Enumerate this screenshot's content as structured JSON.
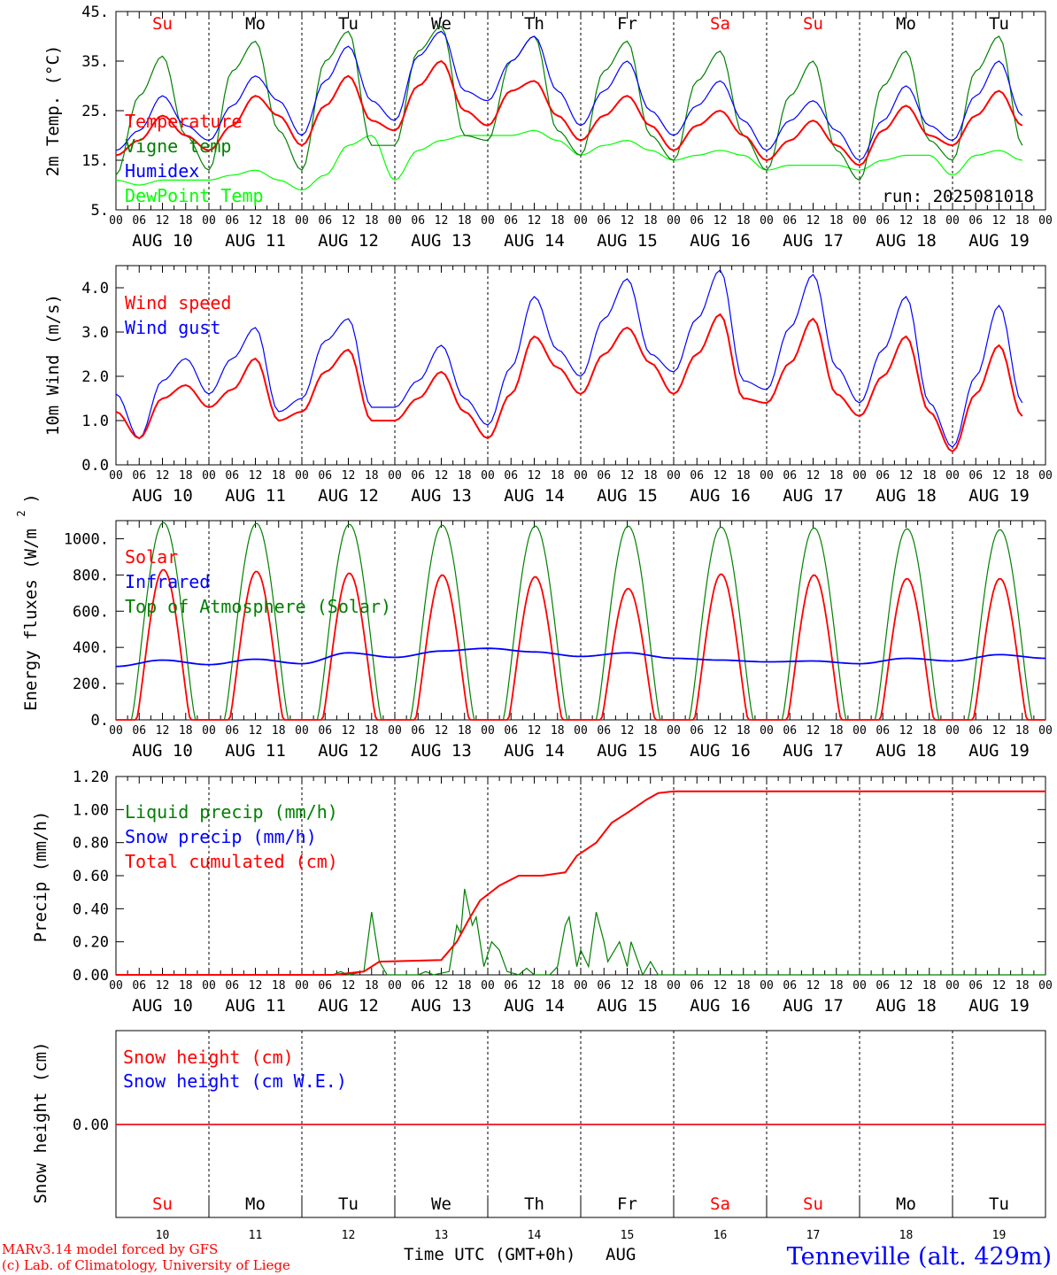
{
  "chart_data": [
    {
      "type": "line",
      "ylabel": "2m Temp. (°C)",
      "ylim": [
        5,
        45
      ],
      "yticks": [
        "5.",
        "15.",
        "25.",
        "35.",
        "45."
      ],
      "legend": [
        "Temperature",
        "Vigne temp",
        "Humidex",
        "DewPoint Temp"
      ],
      "run_label": "run: 2025081018",
      "x_hours": [
        0,
        6,
        12,
        18,
        24,
        30,
        36,
        42,
        48,
        54,
        60,
        66,
        72,
        78,
        84,
        90,
        96,
        102,
        108,
        114,
        120,
        126,
        132,
        138,
        144,
        150,
        156,
        162,
        168,
        174,
        180,
        186,
        192,
        198,
        204,
        210,
        216,
        222,
        228,
        234
      ],
      "series": [
        {
          "name": "Temperature",
          "color": "#ff0000",
          "values": [
            16,
            19,
            24,
            20,
            17,
            22,
            28,
            24,
            18,
            26,
            32,
            23,
            21,
            30,
            35,
            25,
            22,
            29,
            31,
            24,
            19,
            24,
            28,
            22,
            17,
            22,
            25,
            20,
            15,
            19,
            23,
            18,
            14,
            21,
            26,
            20,
            18,
            24,
            29,
            22
          ]
        },
        {
          "name": "Vigne temp",
          "color": "#008000",
          "values": [
            12,
            28,
            36,
            20,
            13,
            33,
            39,
            21,
            13,
            35,
            41,
            18,
            18,
            37,
            42,
            20,
            19,
            35,
            40,
            21,
            16,
            33,
            39,
            20,
            15,
            31,
            37,
            20,
            13,
            28,
            35,
            17,
            11,
            30,
            37,
            19,
            15,
            33,
            40,
            18
          ]
        },
        {
          "name": "Humidex",
          "color": "#0000ff",
          "values": [
            17,
            21,
            28,
            22,
            19,
            26,
            32,
            27,
            20,
            31,
            38,
            27,
            23,
            36,
            41,
            29,
            27,
            35,
            40,
            29,
            22,
            29,
            35,
            25,
            20,
            26,
            31,
            23,
            17,
            23,
            27,
            21,
            15,
            23,
            30,
            22,
            19,
            28,
            35,
            24
          ]
        },
        {
          "name": "DewPoint Temp",
          "color": "#00ff00",
          "values": [
            11,
            10,
            11,
            11,
            11,
            12,
            13,
            11,
            9,
            12,
            18,
            20,
            11,
            17,
            19,
            20,
            20,
            20,
            21,
            19,
            16,
            18,
            19,
            17,
            15,
            16,
            17,
            16,
            13,
            14,
            14,
            14,
            13,
            15,
            16,
            16,
            12,
            16,
            17,
            15
          ]
        }
      ]
    },
    {
      "type": "line",
      "ylabel": "10m Wind (m/s)",
      "ylim": [
        0,
        4.5
      ],
      "yticks": [
        "0.0",
        "1.0",
        "2.0",
        "3.0",
        "4.0"
      ],
      "legend": [
        "Wind speed",
        "Wind gust"
      ],
      "x_hours": [
        0,
        6,
        12,
        18,
        24,
        30,
        36,
        42,
        48,
        54,
        60,
        66,
        72,
        78,
        84,
        90,
        96,
        102,
        108,
        114,
        120,
        126,
        132,
        138,
        144,
        150,
        156,
        162,
        168,
        174,
        180,
        186,
        192,
        198,
        204,
        210,
        216,
        222,
        228,
        234
      ],
      "series": [
        {
          "name": "Wind speed",
          "color": "#ff0000",
          "values": [
            1.2,
            0.6,
            1.5,
            1.8,
            1.3,
            1.7,
            2.4,
            1.0,
            1.2,
            2.1,
            2.6,
            1.0,
            1.0,
            1.5,
            2.1,
            1.2,
            0.6,
            1.6,
            2.9,
            2.2,
            1.6,
            2.5,
            3.1,
            2.3,
            1.6,
            2.5,
            3.4,
            1.5,
            1.4,
            2.3,
            3.3,
            1.6,
            1.1,
            2.0,
            2.9,
            1.2,
            0.3,
            1.6,
            2.7,
            1.1
          ]
        },
        {
          "name": "Wind gust",
          "color": "#0000ff",
          "values": [
            1.6,
            0.6,
            1.9,
            2.4,
            1.6,
            2.4,
            3.1,
            1.2,
            1.5,
            2.8,
            3.3,
            1.3,
            1.3,
            1.9,
            2.7,
            1.5,
            0.9,
            2.2,
            3.8,
            2.6,
            2.0,
            3.3,
            4.2,
            2.5,
            2.1,
            3.3,
            4.4,
            1.9,
            1.7,
            3.1,
            4.3,
            2.2,
            1.4,
            2.6,
            3.8,
            1.4,
            0.4,
            2.0,
            3.6,
            1.4
          ]
        }
      ]
    },
    {
      "type": "line",
      "ylabel": "Energy fluxes (W/m2)",
      "ylim": [
        0,
        1100
      ],
      "yticks": [
        "0.",
        "200.",
        "400.",
        "600.",
        "800.",
        "1000."
      ],
      "legend": [
        "Solar",
        "Infrared",
        "Top of Atmosphere (Solar)"
      ],
      "series": [
        {
          "name": "Solar",
          "color": "#ff0000",
          "daily_peak": [
            830,
            820,
            810,
            800,
            790,
            725,
            805,
            800,
            780,
            780
          ]
        },
        {
          "name": "Infrared",
          "color": "#0000ff",
          "x_hours": [
            0,
            12,
            24,
            36,
            48,
            60,
            72,
            84,
            96,
            108,
            120,
            132,
            144,
            156,
            168,
            180,
            192,
            204,
            216,
            228,
            240
          ],
          "values": [
            295,
            330,
            305,
            335,
            310,
            370,
            345,
            380,
            395,
            375,
            350,
            370,
            340,
            330,
            320,
            325,
            310,
            340,
            325,
            360,
            340
          ]
        },
        {
          "name": "Top of Atmosphere (Solar)",
          "color": "#008000",
          "daily_peak": [
            1090,
            1085,
            1080,
            1075,
            1070,
            1070,
            1065,
            1060,
            1055,
            1050
          ]
        }
      ]
    },
    {
      "type": "line",
      "ylabel": "Precip (mm/h)",
      "ylim": [
        0,
        1.2
      ],
      "yticks": [
        "0.00",
        "0.20",
        "0.40",
        "0.60",
        "0.80",
        "1.00",
        "1.20"
      ],
      "legend": [
        "Liquid precip (mm/h)",
        "Snow precip (mm/h)",
        "Total cumulated (cm)"
      ],
      "series": [
        {
          "name": "Liquid precip (mm/h)",
          "color": "#008000",
          "points": [
            [
              0,
              0
            ],
            [
              56,
              0
            ],
            [
              58,
              0.02
            ],
            [
              60,
              0.0
            ],
            [
              64,
              0.02
            ],
            [
              66,
              0.38
            ],
            [
              68,
              0.08
            ],
            [
              70,
              0.0
            ],
            [
              78,
              0.0
            ],
            [
              80,
              0.02
            ],
            [
              82,
              0.0
            ],
            [
              86,
              0.02
            ],
            [
              88,
              0.3
            ],
            [
              89,
              0.25
            ],
            [
              90,
              0.52
            ],
            [
              92,
              0.3
            ],
            [
              93,
              0.35
            ],
            [
              95,
              0.05
            ],
            [
              97,
              0.2
            ],
            [
              99,
              0.15
            ],
            [
              101,
              0.02
            ],
            [
              104,
              0.0
            ],
            [
              106,
              0.04
            ],
            [
              108,
              0.0
            ],
            [
              112,
              0.0
            ],
            [
              114,
              0.05
            ],
            [
              116,
              0.3
            ],
            [
              117,
              0.35
            ],
            [
              119,
              0.05
            ],
            [
              120,
              0.15
            ],
            [
              122,
              0.05
            ],
            [
              124,
              0.38
            ],
            [
              126,
              0.2
            ],
            [
              127,
              0.08
            ],
            [
              130,
              0.2
            ],
            [
              132,
              0.05
            ],
            [
              133,
              0.2
            ],
            [
              136,
              0.0
            ],
            [
              138,
              0.08
            ],
            [
              140,
              0.0
            ],
            [
              240,
              0
            ]
          ]
        },
        {
          "name": "Snow precip (mm/h)",
          "color": "#0000ff",
          "points": []
        },
        {
          "name": "Total cumulated (cm)",
          "color": "#ff0000",
          "points": [
            [
              0,
              0
            ],
            [
              56,
              0
            ],
            [
              64,
              0.02
            ],
            [
              68,
              0.08
            ],
            [
              84,
              0.09
            ],
            [
              88,
              0.2
            ],
            [
              91,
              0.33
            ],
            [
              94,
              0.45
            ],
            [
              99,
              0.54
            ],
            [
              104,
              0.6
            ],
            [
              110,
              0.6
            ],
            [
              116,
              0.62
            ],
            [
              119,
              0.72
            ],
            [
              124,
              0.8
            ],
            [
              128,
              0.92
            ],
            [
              132,
              0.98
            ],
            [
              137,
              1.06
            ],
            [
              140,
              1.1
            ],
            [
              144,
              1.11
            ],
            [
              240,
              1.11
            ]
          ]
        }
      ]
    },
    {
      "type": "line",
      "ylabel": "Snow height (cm)",
      "ytick_zero": "0.00",
      "legend": [
        "Snow height (cm)",
        "Snow height (cm W.E.)"
      ],
      "series": [
        {
          "name": "Snow height (cm)",
          "color": "#ff0000",
          "values": [
            0,
            0
          ]
        },
        {
          "name": "Snow height (cm W.E.)",
          "color": "#0000ff",
          "values": [
            0,
            0
          ]
        }
      ]
    }
  ],
  "x_axis": {
    "hour_labels": [
      "00",
      "06",
      "12",
      "18"
    ],
    "final_hour_label": "00",
    "date_labels": [
      "AUG 10",
      "AUG 11",
      "AUG 12",
      "AUG 13",
      "AUG 14",
      "AUG 15",
      "AUG 16",
      "AUG 17",
      "AUG 18",
      "AUG 19"
    ],
    "weekdays": [
      "Su",
      "Mo",
      "Tu",
      "We",
      "Th",
      "Fr",
      "Sa",
      "Su",
      "Mo",
      "Tu"
    ],
    "weekend_color": "#ff0000",
    "weekday_color": "#000000",
    "day_numbers": [
      "10",
      "11",
      "12",
      "13",
      "14",
      "15",
      "16",
      "17",
      "18",
      "19"
    ],
    "title": "Time UTC (GMT+0h)",
    "month": "AUG"
  },
  "footer": {
    "credit_line1": "MARv3.14 model forced by GFS",
    "credit_line2": "(c) Lab. of Climatology, University of Liege",
    "location": "Tenneville (alt. 429m)"
  }
}
